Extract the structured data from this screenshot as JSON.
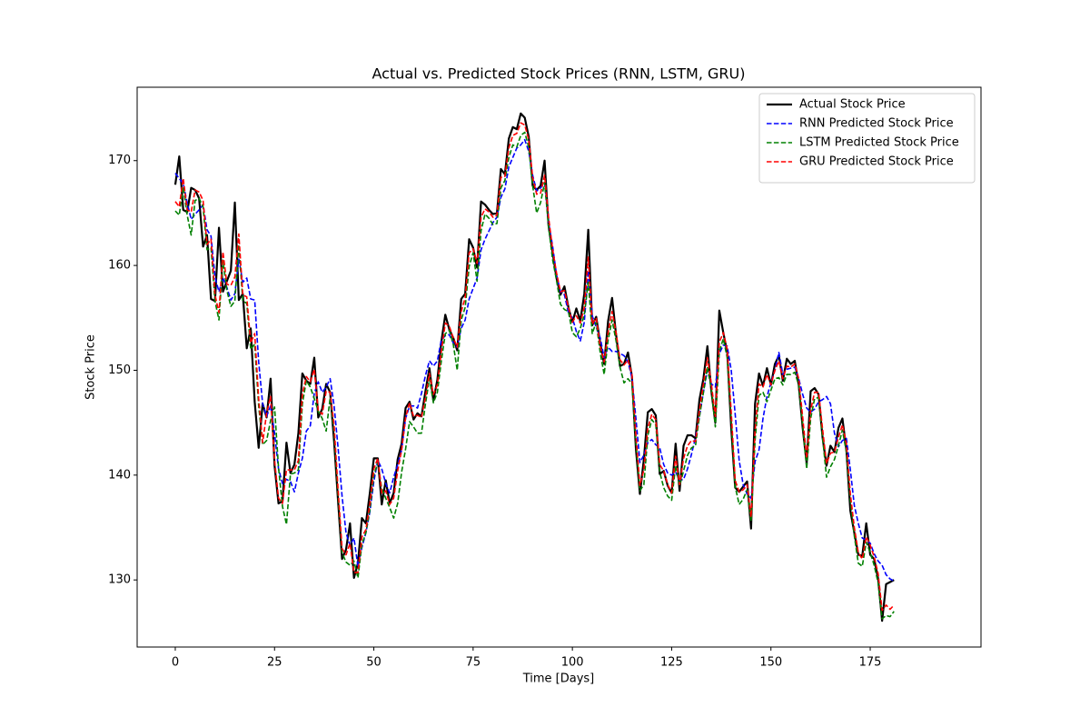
{
  "chart_data": {
    "type": "line",
    "title": "Actual vs. Predicted Stock Prices (RNN, LSTM, GRU)",
    "xlabel": "Time [Days]",
    "ylabel": "Stock Price",
    "xlim": [
      -9.6,
      202.9
    ],
    "xticks": [
      0,
      25,
      50,
      75,
      100,
      125,
      150,
      175
    ],
    "ylim": [
      123.6,
      177.0
    ],
    "yticks": [
      130,
      140,
      150,
      160,
      170
    ],
    "legend": "upper right",
    "series": [
      {
        "name": "Actual Stock Price",
        "color": "#000000",
        "linestyle": "solid",
        "values": [
          167.7,
          170.4,
          165.3,
          165.1,
          167.4,
          167.2,
          166.4,
          161.8,
          162.9,
          156.8,
          156.6,
          163.6,
          157.5,
          158.5,
          159.5,
          166.0,
          156.7,
          157.3,
          152.1,
          154.0,
          147.0,
          142.6,
          146.8,
          145.5,
          149.2,
          140.9,
          137.3,
          137.5,
          143.1,
          140.2,
          141.0,
          144.0,
          149.7,
          149.0,
          148.7,
          151.2,
          145.5,
          146.3,
          148.7,
          147.9,
          143.2,
          137.5,
          132.0,
          132.9,
          135.4,
          130.2,
          131.6,
          135.9,
          135.4,
          138.3,
          141.6,
          141.6,
          137.2,
          139.5,
          137.3,
          138.3,
          141.5,
          143.0,
          146.4,
          147.0,
          145.3,
          145.9,
          145.6,
          148.0,
          150.2,
          147.1,
          149.1,
          152.7,
          155.3,
          153.9,
          153.1,
          151.9,
          156.8,
          157.3,
          162.5,
          161.7,
          159.8,
          166.1,
          165.8,
          165.3,
          164.9,
          165.0,
          169.2,
          168.7,
          172.1,
          173.2,
          173.0,
          174.5,
          174.1,
          172.3,
          167.6,
          167.2,
          167.6,
          170.0,
          163.8,
          161.3,
          158.8,
          157.2,
          158.0,
          156.0,
          154.6,
          155.9,
          154.7,
          157.3,
          163.4,
          154.3,
          155.1,
          152.6,
          150.6,
          154.7,
          156.9,
          153.4,
          150.4,
          150.6,
          151.7,
          149.4,
          142.5,
          138.2,
          141.5,
          146.0,
          146.3,
          145.7,
          140.1,
          140.4,
          139.0,
          138.3,
          143.0,
          138.5,
          142.8,
          143.8,
          143.8,
          143.5,
          147.2,
          149.2,
          152.3,
          148.0,
          145.0,
          155.7,
          153.6,
          151.7,
          144.5,
          138.8,
          138.4,
          138.9,
          139.4,
          134.9,
          146.8,
          149.7,
          148.5,
          150.2,
          148.6,
          150.6,
          151.4,
          149.0,
          151.1,
          150.6,
          150.9,
          148.6,
          144.5,
          141.1,
          148.0,
          148.3,
          147.7,
          143.6,
          140.9,
          142.8,
          142.2,
          144.5,
          145.4,
          142.4,
          136.6,
          134.5,
          132.4,
          132.3,
          135.4,
          132.4,
          132.0,
          130.1,
          126.1,
          129.6,
          129.8,
          130.0
        ]
      },
      {
        "name": "RNN Predicted Stock Price",
        "color": "#0000ff",
        "linestyle": "dashed",
        "values": [
          168.8,
          168.3,
          167.8,
          166.0,
          164.4,
          164.9,
          165.3,
          165.8,
          163.4,
          162.8,
          158.9,
          157.5,
          158.8,
          157.9,
          156.7,
          157.3,
          160.6,
          158.4,
          158.8,
          156.8,
          156.7,
          150.8,
          146.8,
          145.6,
          146.6,
          144.0,
          140.6,
          139.2,
          139.6,
          139.4,
          138.4,
          140.2,
          141.6,
          144.2,
          144.7,
          147.8,
          148.9,
          147.9,
          148.4,
          149.2,
          146.6,
          142.6,
          138.0,
          134.5,
          133.3,
          134.0,
          131.3,
          133.1,
          134.5,
          136.5,
          139.4,
          141.4,
          140.6,
          139.2,
          138.3,
          139.8,
          141.0,
          142.4,
          145.4,
          146.6,
          146.6,
          146.4,
          147.8,
          149.5,
          150.9,
          150.4,
          150.9,
          152.9,
          153.3,
          153.4,
          152.6,
          152.2,
          154.0,
          154.8,
          156.8,
          157.8,
          158.8,
          161.5,
          162.5,
          163.3,
          164.1,
          164.6,
          166.5,
          167.3,
          169.4,
          170.3,
          171.2,
          171.5,
          172.0,
          170.9,
          168.6,
          167.1,
          167.4,
          167.9,
          164.1,
          161.9,
          159.1,
          157.5,
          157.2,
          155.5,
          155.0,
          153.7,
          152.8,
          154.6,
          159.5,
          155.2,
          154.1,
          153.1,
          151.2,
          152.2,
          151.8,
          151.8,
          151.6,
          151.4,
          150.8,
          149.3,
          145.4,
          141.2,
          141.9,
          143.1,
          143.4,
          142.9,
          142.6,
          141.0,
          140.2,
          140.0,
          140.3,
          139.5,
          139.6,
          140.6,
          142.0,
          143.6,
          145.6,
          147.9,
          150.0,
          148.7,
          148.4,
          151.6,
          152.4,
          152.3,
          150.0,
          145.8,
          141.4,
          139.1,
          138.2,
          137.8,
          141.3,
          142.4,
          145.4,
          147.5,
          148.8,
          150.0,
          151.7,
          149.6,
          150.1,
          150.2,
          150.3,
          149.2,
          147.7,
          146.4,
          146.0,
          146.3,
          147.0,
          147.2,
          147.5,
          146.8,
          144.0,
          142.7,
          143.3,
          143.5,
          140.5,
          137.1,
          135.4,
          134.0,
          133.8,
          133.5,
          132.5,
          131.8,
          131.4,
          130.5,
          130.1,
          129.9
        ]
      },
      {
        "name": "LSTM Predicted Stock Price",
        "color": "#008000",
        "linestyle": "dashed",
        "values": [
          165.2,
          164.8,
          167.5,
          164.8,
          162.9,
          166.2,
          166.4,
          165.6,
          161.5,
          161.7,
          156.6,
          154.8,
          160.5,
          157.6,
          156.1,
          156.6,
          162.0,
          156.6,
          156.4,
          152.0,
          152.5,
          146.6,
          142.9,
          143.3,
          145.2,
          146.5,
          140.7,
          137.0,
          135.3,
          140.1,
          140.2,
          140.5,
          146.8,
          149.0,
          148.4,
          147.3,
          146.1,
          145.4,
          144.2,
          147.4,
          144.0,
          138.0,
          132.6,
          131.7,
          131.4,
          131.8,
          130.2,
          133.4,
          134.5,
          136.7,
          140.0,
          141.2,
          138.7,
          137.8,
          136.9,
          135.9,
          137.3,
          140.3,
          142.5,
          145.1,
          144.6,
          144.0,
          144.0,
          146.8,
          149.2,
          146.9,
          147.9,
          150.9,
          153.5,
          153.8,
          152.5,
          150.0,
          154.8,
          156.0,
          159.9,
          161.2,
          158.5,
          163.3,
          164.9,
          164.5,
          163.9,
          164.0,
          167.4,
          168.1,
          170.3,
          171.5,
          171.3,
          172.4,
          172.7,
          171.3,
          167.6,
          165.0,
          166.0,
          167.9,
          163.7,
          160.6,
          158.6,
          156.3,
          155.8,
          155.6,
          153.6,
          153.2,
          154.0,
          155.3,
          158.4,
          153.5,
          154.6,
          151.7,
          149.6,
          152.9,
          154.8,
          152.8,
          150.3,
          148.8,
          149.2,
          148.7,
          143.1,
          138.5,
          139.1,
          143.8,
          145.3,
          144.8,
          140.3,
          138.8,
          138.0,
          137.6,
          140.9,
          139.0,
          140.4,
          141.9,
          142.6,
          142.8,
          145.6,
          147.9,
          150.3,
          148.2,
          144.6,
          151.8,
          153.0,
          151.2,
          145.3,
          138.9,
          137.2,
          137.7,
          138.6,
          135.6,
          143.3,
          147.6,
          147.9,
          147.0,
          148.1,
          149.2,
          149.3,
          148.6,
          149.6,
          149.6,
          149.8,
          148.6,
          144.8,
          140.6,
          145.4,
          147.3,
          147.4,
          143.6,
          139.8,
          140.8,
          141.5,
          142.8,
          144.3,
          142.2,
          137.6,
          134.2,
          131.6,
          131.3,
          133.6,
          132.6,
          131.4,
          129.7,
          126.3,
          126.6,
          126.5,
          127.0
        ]
      },
      {
        "name": "GRU Predicted Stock Price",
        "color": "#ff0000",
        "linestyle": "dashed",
        "values": [
          166.1,
          165.6,
          168.3,
          165.3,
          165.1,
          167.2,
          167.0,
          166.2,
          162.0,
          162.5,
          157.2,
          155.5,
          161.3,
          158.2,
          158.1,
          158.9,
          163.0,
          157.2,
          157.0,
          152.6,
          153.5,
          147.3,
          143.1,
          145.9,
          147.5,
          141.4,
          137.8,
          137.3,
          140.5,
          140.5,
          140.5,
          141.4,
          147.7,
          149.4,
          148.9,
          150.1,
          146.2,
          145.8,
          148.0,
          147.9,
          144.7,
          138.6,
          133.0,
          132.4,
          133.5,
          130.7,
          130.7,
          134.1,
          134.8,
          137.2,
          140.6,
          141.6,
          138.3,
          138.5,
          137.2,
          137.8,
          140.4,
          142.4,
          145.5,
          146.9,
          145.6,
          145.7,
          145.5,
          147.4,
          149.7,
          147.7,
          148.6,
          151.8,
          154.5,
          154.2,
          153.1,
          152.2,
          155.6,
          156.9,
          161.2,
          161.6,
          160.2,
          164.6,
          165.4,
          165.1,
          164.6,
          164.8,
          168.4,
          168.5,
          171.2,
          172.4,
          172.6,
          173.6,
          173.4,
          172.0,
          168.4,
          166.8,
          166.9,
          168.6,
          164.6,
          161.6,
          159.3,
          157.5,
          157.6,
          156.0,
          154.6,
          155.2,
          154.5,
          156.0,
          160.8,
          154.4,
          155.0,
          152.3,
          150.8,
          153.6,
          155.6,
          153.6,
          151.0,
          150.5,
          151.0,
          149.6,
          143.8,
          139.0,
          140.5,
          144.5,
          145.8,
          145.3,
          141.0,
          140.4,
          139.1,
          138.3,
          141.8,
          139.1,
          141.6,
          142.8,
          143.3,
          143.2,
          146.2,
          148.7,
          151.2,
          148.7,
          145.6,
          152.7,
          153.6,
          152.0,
          146.0,
          139.5,
          138.4,
          138.6,
          139.1,
          136.0,
          144.2,
          148.7,
          148.4,
          149.6,
          148.6,
          150.0,
          150.9,
          149.2,
          150.4,
          150.3,
          150.6,
          149.2,
          145.5,
          141.6,
          146.2,
          147.9,
          147.9,
          144.4,
          141.1,
          142.1,
          142.2,
          143.6,
          144.8,
          143.0,
          138.2,
          135.0,
          132.6,
          132.0,
          134.1,
          133.3,
          132.2,
          130.6,
          127.1,
          127.6,
          127.2,
          127.6
        ]
      }
    ]
  }
}
